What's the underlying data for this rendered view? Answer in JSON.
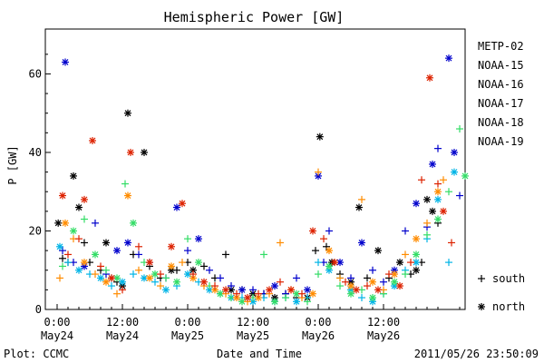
{
  "chart_data": {
    "type": "scatter",
    "title": "Hemispheric Power [GW]",
    "xlabel": "Date and Time",
    "ylabel": "P [GW]",
    "xlim": [
      0,
      78
    ],
    "ylim": [
      0,
      70
    ],
    "y_ticks": [
      0,
      20,
      40,
      60
    ],
    "x_ticks": [
      {
        "x": 0,
        "line1": "0:00",
        "line2": "May24"
      },
      {
        "x": 12,
        "line1": "12:00",
        "line2": "May24"
      },
      {
        "x": 24,
        "line1": "0:00",
        "line2": "May25"
      },
      {
        "x": 36,
        "line1": "12:00",
        "line2": "May25"
      },
      {
        "x": 48,
        "line1": "0:00",
        "line2": "May26"
      },
      {
        "x": 60,
        "line1": "12:00",
        "line2": "May26"
      }
    ],
    "x_unit_note": "hours since 2011-05-24 00:00",
    "grid": false,
    "legend_position": "right",
    "marker_legend": [
      {
        "marker": "+",
        "label": "south"
      },
      {
        "marker": "*",
        "label": "north"
      }
    ],
    "series": [
      {
        "name": "METP-02",
        "color": "#000000",
        "points": [
          [
            0.2,
            22,
            "n"
          ],
          [
            1,
            13,
            "s"
          ],
          [
            2,
            12,
            "s"
          ],
          [
            3,
            34,
            "n"
          ],
          [
            4,
            26,
            "n"
          ],
          [
            5,
            17,
            "s"
          ],
          [
            6,
            12,
            "s"
          ],
          [
            8,
            10,
            "s"
          ],
          [
            9,
            17,
            "n"
          ],
          [
            10,
            8,
            "s"
          ],
          [
            11,
            7,
            "s"
          ],
          [
            12,
            6,
            "n"
          ],
          [
            13,
            50,
            "n"
          ],
          [
            14,
            14,
            "s"
          ],
          [
            16,
            40,
            "n"
          ],
          [
            17,
            11,
            "s"
          ],
          [
            19,
            8,
            "s"
          ],
          [
            21,
            10,
            "n"
          ],
          [
            22,
            10,
            "s"
          ],
          [
            24,
            12,
            "s"
          ],
          [
            25,
            10,
            "n"
          ],
          [
            27,
            11,
            "s"
          ],
          [
            29,
            8,
            "s"
          ],
          [
            31,
            14,
            "s"
          ],
          [
            32,
            5,
            "n"
          ],
          [
            34,
            5,
            "s"
          ],
          [
            36,
            4,
            "n"
          ],
          [
            38,
            4,
            "s"
          ],
          [
            40,
            3,
            "n"
          ],
          [
            42,
            4,
            "s"
          ],
          [
            44,
            3,
            "s"
          ],
          [
            46,
            3,
            "n"
          ],
          [
            47.5,
            15,
            "s"
          ],
          [
            48.3,
            44,
            "n"
          ],
          [
            49.5,
            16,
            "s"
          ],
          [
            50.5,
            12,
            "n"
          ],
          [
            52,
            9,
            "s"
          ],
          [
            54,
            7,
            "n"
          ],
          [
            55.5,
            26,
            "n"
          ],
          [
            57,
            8,
            "s"
          ],
          [
            59,
            15,
            "n"
          ],
          [
            61,
            8,
            "s"
          ],
          [
            63,
            12,
            "n"
          ],
          [
            65,
            9,
            "s"
          ],
          [
            66,
            10,
            "n"
          ],
          [
            67,
            12,
            "s"
          ],
          [
            68,
            28,
            "n"
          ],
          [
            69,
            25,
            "n"
          ],
          [
            70,
            22,
            "s"
          ]
        ]
      },
      {
        "name": "NOAA-15",
        "color": "#0000cc",
        "points": [
          [
            1,
            15,
            "s"
          ],
          [
            1.5,
            63,
            "n"
          ],
          [
            3,
            12,
            "s"
          ],
          [
            5,
            11,
            "n"
          ],
          [
            7,
            22,
            "s"
          ],
          [
            9,
            9,
            "s"
          ],
          [
            11,
            15,
            "n"
          ],
          [
            13,
            17,
            "n"
          ],
          [
            15,
            14,
            "s"
          ],
          [
            17,
            12,
            "s"
          ],
          [
            20,
            8,
            "s"
          ],
          [
            22,
            26,
            "n"
          ],
          [
            24,
            15,
            "s"
          ],
          [
            26,
            18,
            "n"
          ],
          [
            28,
            10,
            "s"
          ],
          [
            30,
            8,
            "s"
          ],
          [
            32,
            6,
            "s"
          ],
          [
            34,
            5,
            "n"
          ],
          [
            36,
            5,
            "s"
          ],
          [
            38,
            4,
            "s"
          ],
          [
            40,
            6,
            "n"
          ],
          [
            42,
            4,
            "s"
          ],
          [
            44,
            8,
            "s"
          ],
          [
            46,
            5,
            "n"
          ],
          [
            48,
            34,
            "n"
          ],
          [
            49,
            12,
            "s"
          ],
          [
            50,
            20,
            "s"
          ],
          [
            52,
            12,
            "n"
          ],
          [
            54,
            8,
            "s"
          ],
          [
            56,
            17,
            "n"
          ],
          [
            58,
            10,
            "s"
          ],
          [
            60,
            7,
            "s"
          ],
          [
            62,
            10,
            "n"
          ],
          [
            64,
            20,
            "s"
          ],
          [
            66,
            27,
            "n"
          ],
          [
            68,
            21,
            "s"
          ],
          [
            69,
            37,
            "n"
          ],
          [
            70,
            41,
            "s"
          ],
          [
            72,
            64,
            "n"
          ],
          [
            73,
            40,
            "n"
          ],
          [
            74,
            29,
            "s"
          ]
        ]
      },
      {
        "name": "NOAA-16",
        "color": "#00b4e6",
        "points": [
          [
            0.5,
            16,
            "n"
          ],
          [
            2,
            12,
            "s"
          ],
          [
            4,
            10,
            "n"
          ],
          [
            6,
            9,
            "s"
          ],
          [
            8,
            8,
            "n"
          ],
          [
            10,
            6,
            "s"
          ],
          [
            12,
            7,
            "n"
          ],
          [
            14,
            9,
            "s"
          ],
          [
            16,
            8,
            "n"
          ],
          [
            18,
            7,
            "s"
          ],
          [
            20,
            5,
            "n"
          ],
          [
            22,
            6,
            "s"
          ],
          [
            24,
            9,
            "n"
          ],
          [
            26,
            7,
            "s"
          ],
          [
            28,
            5,
            "n"
          ],
          [
            30,
            4,
            "s"
          ],
          [
            32,
            3,
            "n"
          ],
          [
            34,
            3,
            "s"
          ],
          [
            36,
            2,
            "n"
          ],
          [
            38,
            3,
            "s"
          ],
          [
            40,
            2,
            "n"
          ],
          [
            42,
            3,
            "s"
          ],
          [
            44,
            2,
            "n"
          ],
          [
            46,
            3,
            "s"
          ],
          [
            48,
            12,
            "s"
          ],
          [
            50,
            10,
            "n"
          ],
          [
            52,
            8,
            "s"
          ],
          [
            54,
            5,
            "n"
          ],
          [
            56,
            3,
            "s"
          ],
          [
            58,
            2,
            "n"
          ],
          [
            60,
            4,
            "s"
          ],
          [
            62,
            6,
            "n"
          ],
          [
            64,
            10,
            "s"
          ],
          [
            66,
            12,
            "n"
          ],
          [
            68,
            18,
            "s"
          ],
          [
            70,
            28,
            "n"
          ],
          [
            72,
            12,
            "s"
          ],
          [
            73,
            35,
            "n"
          ]
        ]
      },
      {
        "name": "NOAA-17",
        "color": "#33dd66",
        "points": [
          [
            1,
            11,
            "s"
          ],
          [
            3,
            20,
            "n"
          ],
          [
            5,
            23,
            "s"
          ],
          [
            7,
            14,
            "n"
          ],
          [
            9,
            10,
            "s"
          ],
          [
            11,
            8,
            "n"
          ],
          [
            12.5,
            32,
            "s"
          ],
          [
            14,
            22,
            "n"
          ],
          [
            16,
            12,
            "s"
          ],
          [
            18,
            9,
            "n"
          ],
          [
            20,
            8,
            "s"
          ],
          [
            22,
            7,
            "n"
          ],
          [
            24,
            18,
            "s"
          ],
          [
            26,
            12,
            "n"
          ],
          [
            28,
            6,
            "s"
          ],
          [
            30,
            4,
            "n"
          ],
          [
            32,
            3,
            "s"
          ],
          [
            34,
            2,
            "n"
          ],
          [
            36,
            3,
            "s"
          ],
          [
            38,
            14,
            "s"
          ],
          [
            40,
            2,
            "n"
          ],
          [
            42,
            3,
            "s"
          ],
          [
            44,
            4,
            "n"
          ],
          [
            46,
            2,
            "s"
          ],
          [
            48,
            9,
            "s"
          ],
          [
            50,
            11,
            "n"
          ],
          [
            52,
            6,
            "s"
          ],
          [
            54,
            4,
            "n"
          ],
          [
            56,
            5,
            "s"
          ],
          [
            58,
            3,
            "n"
          ],
          [
            60,
            4,
            "s"
          ],
          [
            62,
            7,
            "n"
          ],
          [
            64,
            9,
            "s"
          ],
          [
            66,
            14,
            "n"
          ],
          [
            68,
            19,
            "s"
          ],
          [
            70,
            23,
            "n"
          ],
          [
            72,
            30,
            "s"
          ],
          [
            74,
            46,
            "s"
          ],
          [
            75,
            34,
            "n"
          ]
        ]
      },
      {
        "name": "NOAA-18",
        "color": "#ff8c00",
        "points": [
          [
            0.5,
            8,
            "s"
          ],
          [
            1.5,
            22,
            "n"
          ],
          [
            3,
            18,
            "s"
          ],
          [
            5,
            12,
            "n"
          ],
          [
            7,
            9,
            "s"
          ],
          [
            9,
            7,
            "n"
          ],
          [
            11,
            4,
            "s"
          ],
          [
            13,
            29,
            "n"
          ],
          [
            15,
            10,
            "s"
          ],
          [
            17,
            8,
            "n"
          ],
          [
            19,
            6,
            "s"
          ],
          [
            21,
            11,
            "n"
          ],
          [
            23,
            12,
            "s"
          ],
          [
            25,
            8,
            "n"
          ],
          [
            27,
            6,
            "s"
          ],
          [
            29,
            5,
            "n"
          ],
          [
            31,
            4,
            "s"
          ],
          [
            33,
            3,
            "n"
          ],
          [
            35,
            2,
            "s"
          ],
          [
            37,
            3,
            "n"
          ],
          [
            39,
            4,
            "s"
          ],
          [
            41,
            17,
            "s"
          ],
          [
            43,
            5,
            "n"
          ],
          [
            45,
            3,
            "s"
          ],
          [
            47,
            4,
            "n"
          ],
          [
            48,
            35,
            "s"
          ],
          [
            50,
            15,
            "n"
          ],
          [
            52,
            8,
            "s"
          ],
          [
            54,
            6,
            "n"
          ],
          [
            56,
            28,
            "s"
          ],
          [
            58,
            7,
            "n"
          ],
          [
            60,
            5,
            "s"
          ],
          [
            62,
            9,
            "n"
          ],
          [
            64,
            14,
            "s"
          ],
          [
            66,
            18,
            "n"
          ],
          [
            68,
            22,
            "s"
          ],
          [
            70,
            30,
            "n"
          ],
          [
            71,
            33,
            "s"
          ]
        ]
      },
      {
        "name": "NOAA-19",
        "color": "#dd2200",
        "points": [
          [
            1,
            29,
            "n"
          ],
          [
            2,
            14,
            "s"
          ],
          [
            4,
            18,
            "s"
          ],
          [
            5,
            28,
            "n"
          ],
          [
            6.5,
            43,
            "n"
          ],
          [
            8,
            11,
            "s"
          ],
          [
            10,
            8,
            "n"
          ],
          [
            12,
            5,
            "s"
          ],
          [
            13.5,
            40,
            "n"
          ],
          [
            15,
            16,
            "s"
          ],
          [
            17,
            12,
            "n"
          ],
          [
            19,
            9,
            "s"
          ],
          [
            21,
            16,
            "n"
          ],
          [
            23,
            27,
            "n"
          ],
          [
            25,
            9,
            "s"
          ],
          [
            27,
            7,
            "n"
          ],
          [
            29,
            6,
            "s"
          ],
          [
            31,
            5,
            "n"
          ],
          [
            33,
            4,
            "s"
          ],
          [
            35,
            3,
            "n"
          ],
          [
            37,
            4,
            "s"
          ],
          [
            39,
            5,
            "n"
          ],
          [
            41,
            7,
            "s"
          ],
          [
            43,
            5,
            "n"
          ],
          [
            45,
            4,
            "s"
          ],
          [
            47,
            20,
            "n"
          ],
          [
            49,
            18,
            "s"
          ],
          [
            51,
            12,
            "n"
          ],
          [
            53,
            7,
            "s"
          ],
          [
            55,
            5,
            "n"
          ],
          [
            57,
            6,
            "s"
          ],
          [
            59,
            5,
            "n"
          ],
          [
            61,
            9,
            "s"
          ],
          [
            63,
            6,
            "n"
          ],
          [
            65,
            12,
            "s"
          ],
          [
            67,
            33,
            "s"
          ],
          [
            68.5,
            59,
            "n"
          ],
          [
            70,
            32,
            "s"
          ],
          [
            71,
            25,
            "n"
          ],
          [
            72.5,
            17,
            "s"
          ]
        ]
      }
    ]
  },
  "footer": {
    "left": "Plot: CCMC",
    "right": "2011/05/26 23:50:09"
  }
}
